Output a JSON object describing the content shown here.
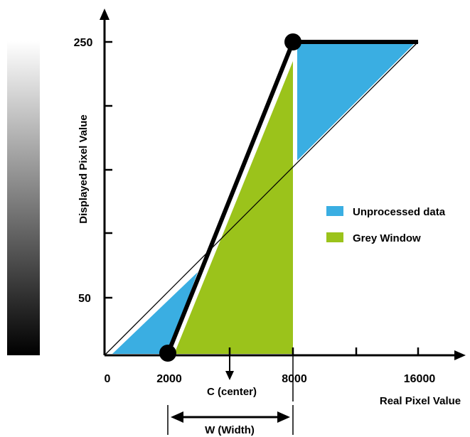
{
  "colors": {
    "unprocessed": "#3aaee2",
    "grey_window": "#9bc31b",
    "ink": "#000000",
    "gradient_top": "#ffffff",
    "gradient_bottom": "#000000"
  },
  "axes": {
    "x_label": "Real Pixel Value",
    "y_label": "Displayed Pixel Value",
    "x_ticks": [
      "0",
      "2000",
      "8000",
      "16000"
    ],
    "y_ticks": [
      "250",
      "50"
    ]
  },
  "legend": {
    "items": [
      {
        "label": "Unprocessed data",
        "color": "#3aaee2"
      },
      {
        "label": "Grey Window",
        "color": "#9bc31b"
      }
    ]
  },
  "annotations": {
    "center": "C (center)",
    "width": "W (Width)"
  }
}
